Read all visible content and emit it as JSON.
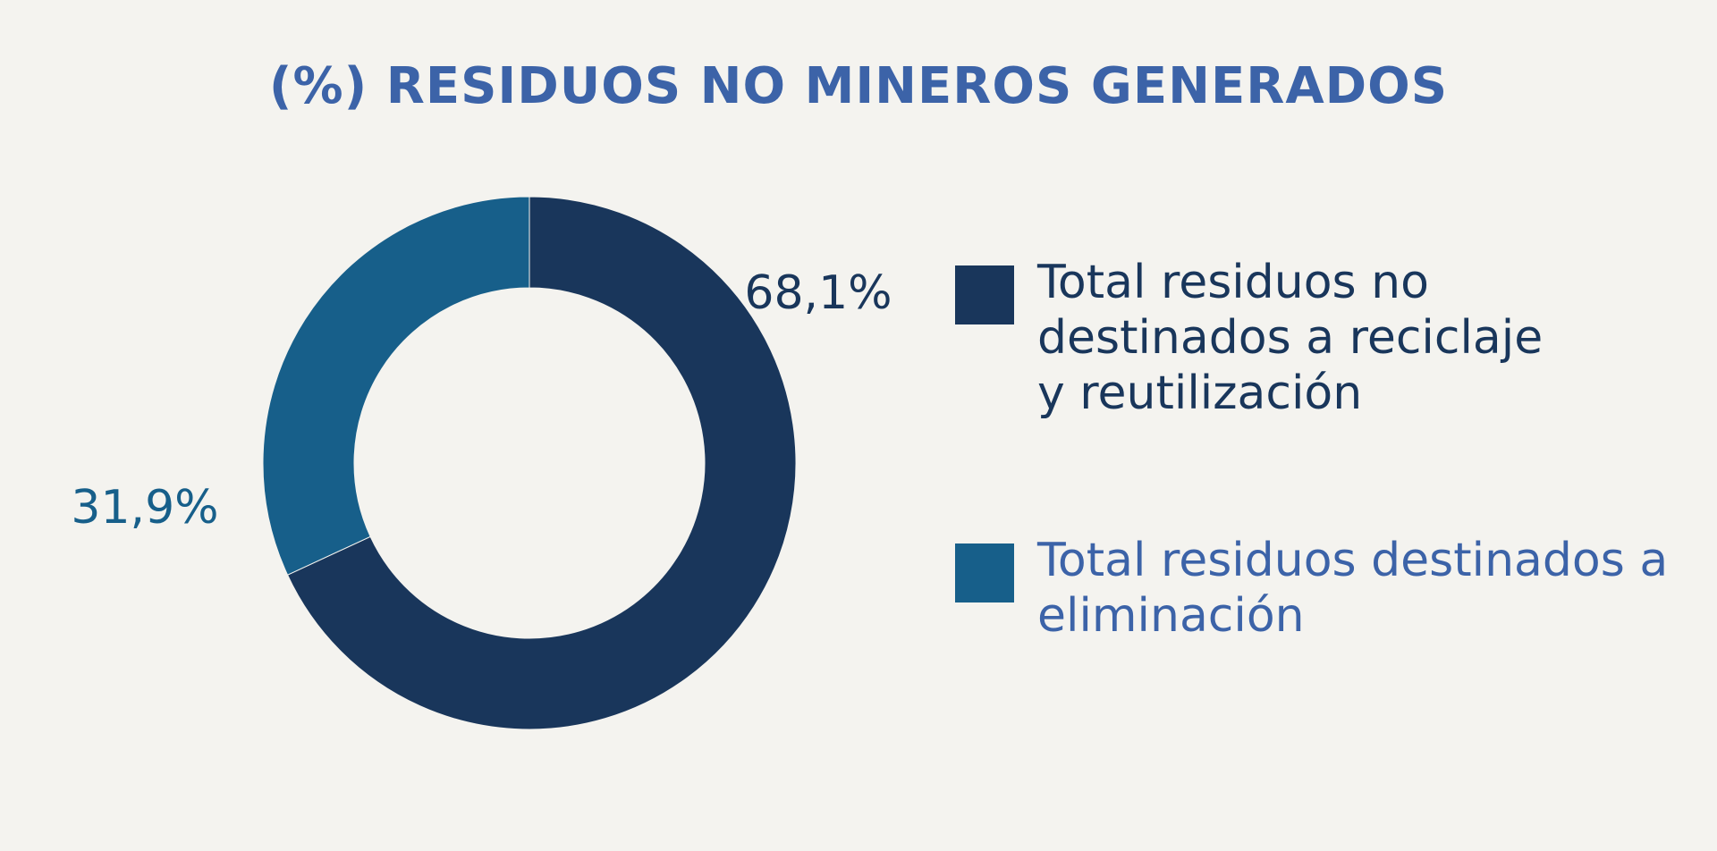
{
  "colors": {
    "background": "#f4f3ef",
    "title": "#3c63a8",
    "slice_dark": "#19365b",
    "slice_teal": "#175f8a",
    "legend_text_2": "#3c63a8"
  },
  "chart_data": {
    "type": "pie",
    "title": "(%) RESIDUOS NO MINEROS GENERADOS",
    "donut": true,
    "legend_position": "right",
    "series": [
      {
        "name": "Total residuos no destinados a reciclaje y reutilización",
        "value": 68.1,
        "label": "68,1%",
        "color": "#19365b"
      },
      {
        "name": "Total residuos destinados a eliminación",
        "value": 31.9,
        "label": "31,9%",
        "color": "#175f8a"
      }
    ]
  }
}
